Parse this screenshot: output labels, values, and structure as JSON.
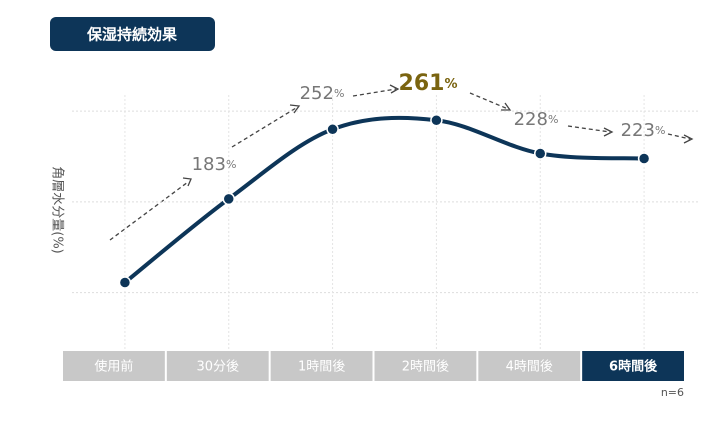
{
  "chart_data": {
    "type": "line",
    "title": "保湿持続効果",
    "y_label": "角層水分量(%)",
    "note": "n=6",
    "categories": [
      "使用前",
      "30分後",
      "1時間後",
      "2時間後",
      "4時間後",
      "6時間後"
    ],
    "series": [
      {
        "name": "角層水分量",
        "color": "#0d3558",
        "values": [
          100,
          183,
          252,
          261,
          228,
          223
        ],
        "value_labels": [
          null,
          "183%",
          "252%",
          "261%",
          "228%",
          "223%"
        ]
      }
    ],
    "ylim": [
      40,
      290
    ],
    "yticks": [
      90,
      180,
      270
    ],
    "grid": true
  }
}
